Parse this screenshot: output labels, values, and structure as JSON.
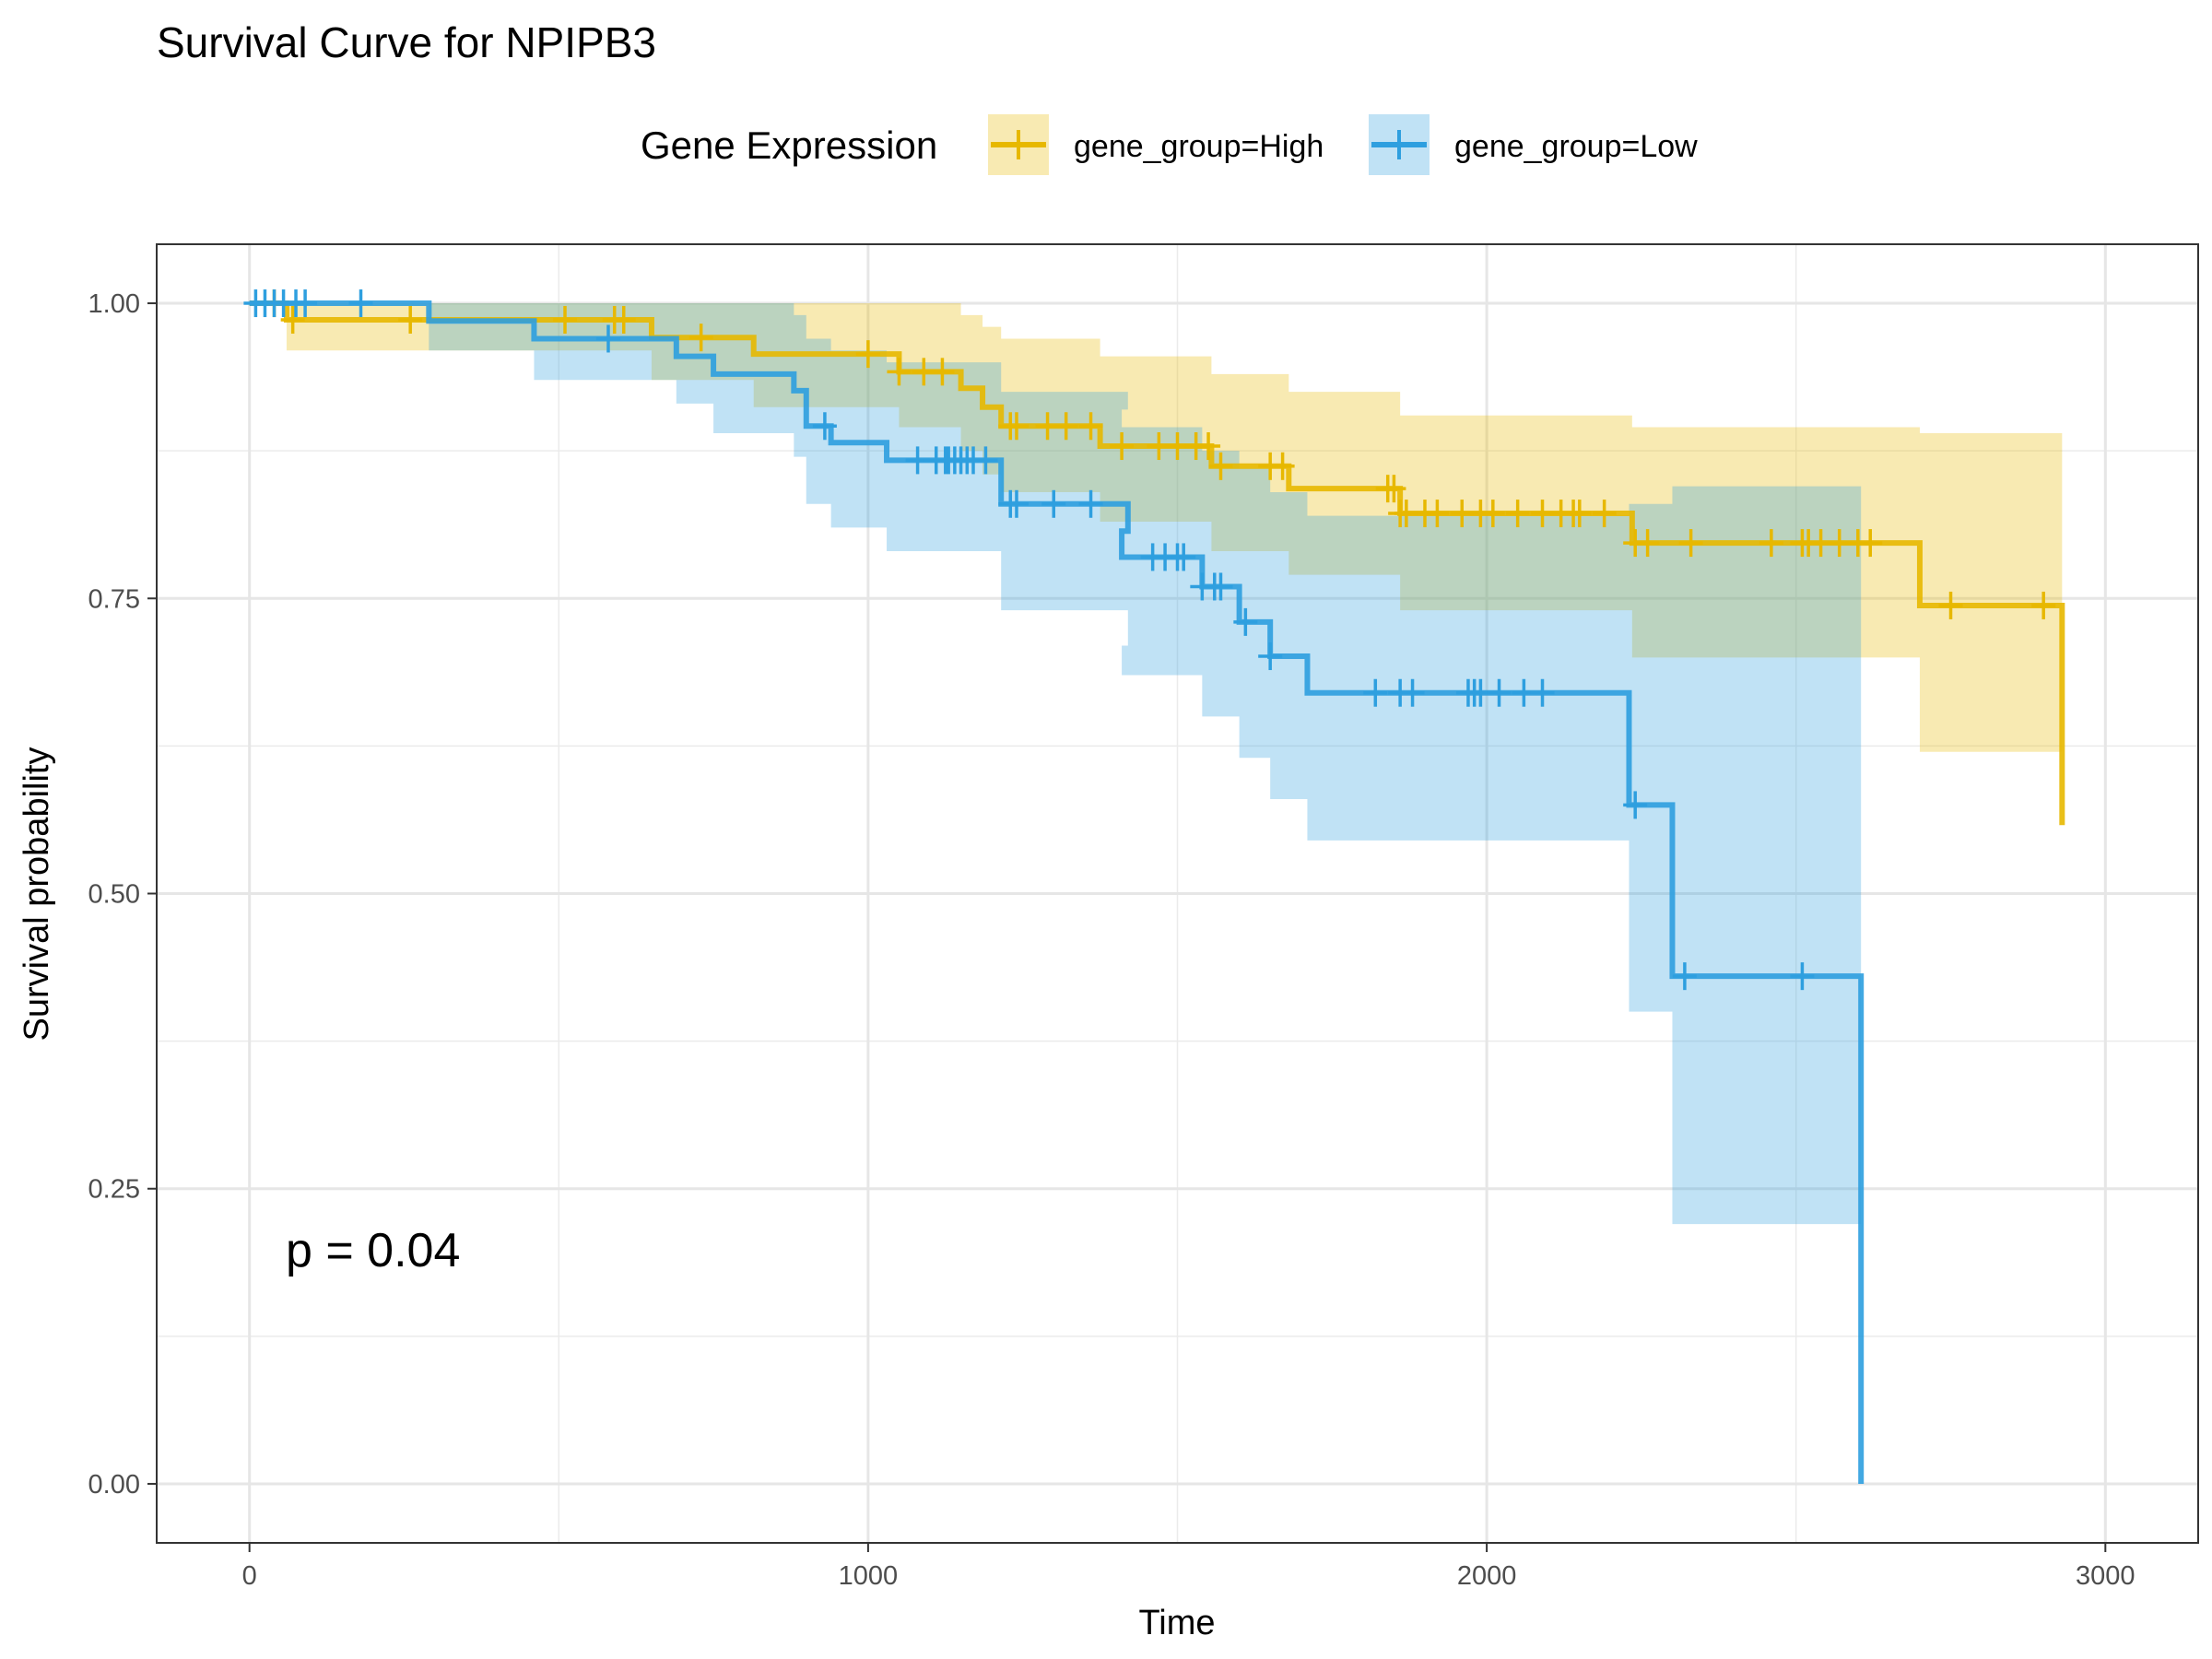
{
  "chart_data": {
    "type": "line",
    "subtype": "kaplan-meier step survival curve with confidence bands and censor marks",
    "title": "Survival Curve for NPIPB3",
    "xlabel": "Time",
    "ylabel": "Survival probability",
    "xlim": [
      -150,
      3150
    ],
    "ylim": [
      -0.05,
      1.05
    ],
    "x_ticks": [
      0,
      1000,
      2000,
      3000
    ],
    "x_tick_labels": [
      "0",
      "1000",
      "2000",
      "3000"
    ],
    "y_ticks": [
      0,
      0.25,
      0.5,
      0.75,
      1
    ],
    "y_tick_labels": [
      "0.00",
      "0.25",
      "0.50",
      "0.75",
      "1.00"
    ],
    "grid": true,
    "legend": {
      "title": "Gene Expression",
      "placement": "top",
      "entries": [
        "gene_group=High",
        "gene_group=Low"
      ]
    },
    "annotation": "p = 0.04",
    "series": [
      {
        "name": "gene_group=High",
        "color": "#E7B800",
        "band_color": "#E7B800",
        "steps": [
          [
            0,
            1.0
          ],
          [
            60,
            0.986
          ],
          [
            650,
            0.971
          ],
          [
            815,
            0.957
          ],
          [
            1050,
            0.942
          ],
          [
            1150,
            0.928
          ],
          [
            1185,
            0.912
          ],
          [
            1215,
            0.896
          ],
          [
            1375,
            0.879
          ],
          [
            1555,
            0.862
          ],
          [
            1680,
            0.843
          ],
          [
            1860,
            0.822
          ],
          [
            2235,
            0.797
          ],
          [
            2700,
            0.744
          ],
          [
            2930,
            0.558
          ]
        ],
        "band": [
          [
            0,
            1.0,
            1.0
          ],
          [
            60,
            1.0,
            0.96
          ],
          [
            650,
            1.0,
            0.935
          ],
          [
            815,
            1.0,
            0.912
          ],
          [
            1050,
            1.0,
            0.895
          ],
          [
            1150,
            0.99,
            0.875
          ],
          [
            1185,
            0.98,
            0.855
          ],
          [
            1215,
            0.97,
            0.84
          ],
          [
            1375,
            0.955,
            0.815
          ],
          [
            1555,
            0.94,
            0.79
          ],
          [
            1680,
            0.925,
            0.77
          ],
          [
            1860,
            0.905,
            0.74
          ],
          [
            2235,
            0.895,
            0.7
          ],
          [
            2700,
            0.89,
            0.62
          ],
          [
            2930,
            1.0,
            0.307
          ]
        ],
        "censor_x": [
          40,
          70,
          260,
          510,
          590,
          605,
          730,
          1000,
          1050,
          1090,
          1120,
          1230,
          1240,
          1290,
          1320,
          1360,
          1410,
          1470,
          1500,
          1530,
          1550,
          1570,
          1650,
          1670,
          1840,
          1850,
          1860,
          1870,
          1900,
          1920,
          1960,
          1990,
          2010,
          2050,
          2090,
          2120,
          2140,
          2150,
          2190,
          2240,
          2260,
          2330,
          2460,
          2510,
          2520,
          2540,
          2570,
          2600,
          2620,
          2750,
          2900
        ]
      },
      {
        "name": "gene_group=Low",
        "color": "#2E9FDF",
        "band_color": "#2E9FDF",
        "steps": [
          [
            0,
            1.0
          ],
          [
            290,
            0.985
          ],
          [
            460,
            0.97
          ],
          [
            690,
            0.955
          ],
          [
            750,
            0.94
          ],
          [
            880,
            0.926
          ],
          [
            900,
            0.896
          ],
          [
            940,
            0.882
          ],
          [
            1030,
            0.867
          ],
          [
            1215,
            0.83
          ],
          [
            1420,
            0.807
          ],
          [
            1410,
            0.785
          ],
          [
            1540,
            0.76
          ],
          [
            1600,
            0.73
          ],
          [
            1650,
            0.701
          ],
          [
            1710,
            0.67
          ],
          [
            2230,
            0.575
          ],
          [
            2300,
            0.43
          ],
          [
            2605,
            0.0
          ]
        ],
        "band": [
          [
            0,
            1.0,
            1.0
          ],
          [
            290,
            1.0,
            0.96
          ],
          [
            460,
            1.0,
            0.935
          ],
          [
            690,
            1.0,
            0.915
          ],
          [
            750,
            1.0,
            0.89
          ],
          [
            880,
            0.99,
            0.87
          ],
          [
            900,
            0.97,
            0.83
          ],
          [
            940,
            0.96,
            0.81
          ],
          [
            1030,
            0.95,
            0.79
          ],
          [
            1215,
            0.925,
            0.74
          ],
          [
            1420,
            0.91,
            0.71
          ],
          [
            1410,
            0.895,
            0.685
          ],
          [
            1540,
            0.875,
            0.65
          ],
          [
            1600,
            0.86,
            0.615
          ],
          [
            1650,
            0.84,
            0.58
          ],
          [
            1710,
            0.82,
            0.545
          ],
          [
            2230,
            0.83,
            0.4
          ],
          [
            2300,
            0.845,
            0.22
          ],
          [
            2605,
            0.845,
            0.22
          ]
        ],
        "censor_x": [
          10,
          25,
          40,
          55,
          75,
          90,
          180,
          580,
          930,
          1080,
          1110,
          1125,
          1130,
          1140,
          1150,
          1160,
          1170,
          1190,
          1230,
          1240,
          1300,
          1360,
          1460,
          1480,
          1500,
          1510,
          1540,
          1560,
          1570,
          1610,
          1650,
          1820,
          1860,
          1880,
          1970,
          1980,
          1990,
          2020,
          2060,
          2090,
          2240,
          2320,
          2510
        ]
      }
    ]
  }
}
